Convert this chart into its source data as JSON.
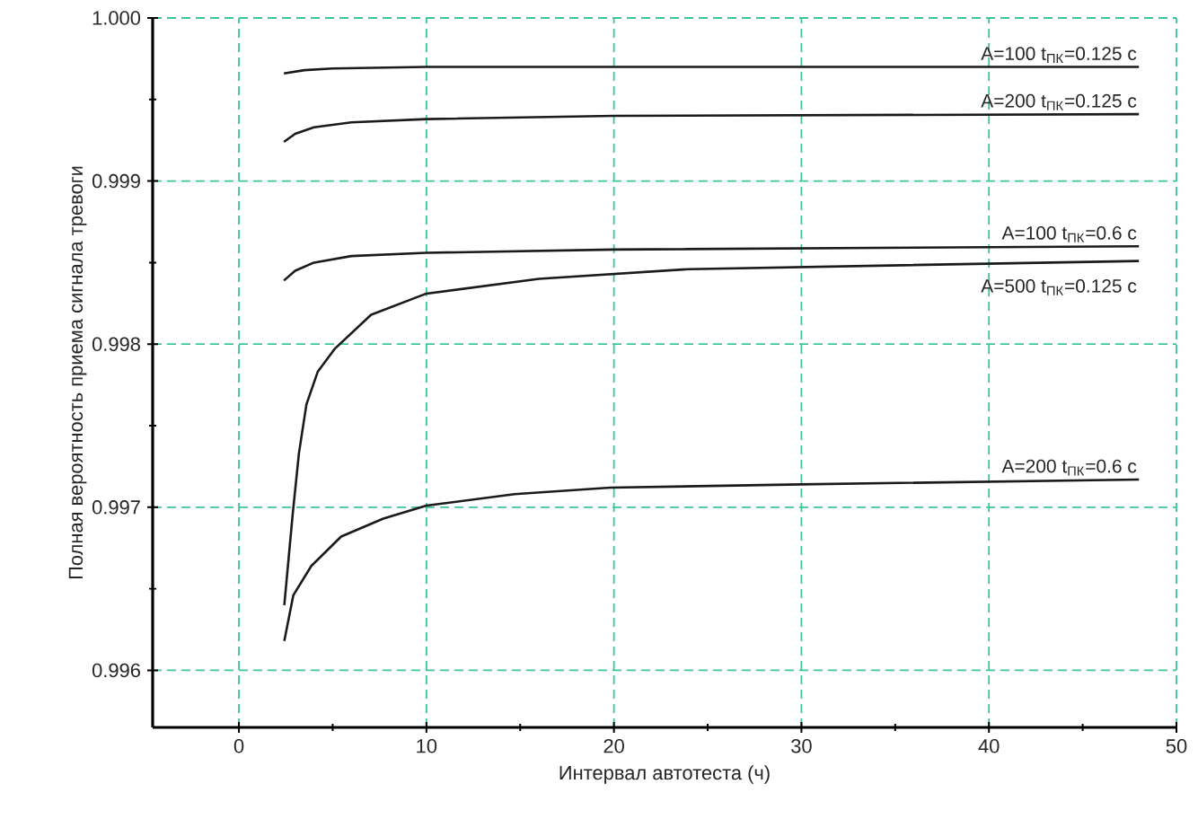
{
  "chart_data": {
    "type": "line",
    "xlabel": "Интервал автотеста (ч)",
    "ylabel": "Полная вероятность приема сигнала тревоги",
    "xlim": [
      -4.6,
      50
    ],
    "ylim": [
      0.99565,
      1.0
    ],
    "xticks": [
      0,
      10,
      20,
      30,
      40,
      50
    ],
    "yticks": [
      0.996,
      0.997,
      0.998,
      0.999,
      {
        "value": 1.0,
        "label": "1.000"
      }
    ],
    "grid": true,
    "legend": false,
    "line_style": "solid",
    "series": [
      {
        "name": "A=100 t$_{ПК}$=0.125 с",
        "color": "#1a1a1a",
        "x": [
          2.4,
          3.5,
          5,
          10,
          20,
          48
        ],
        "values": [
          0.99966,
          0.99968,
          0.99969,
          0.9997,
          0.9997,
          0.9997
        ]
      },
      {
        "name": "A=200 t$_{ПК}$=0.125 с",
        "color": "#1a1a1a",
        "x": [
          2.4,
          3,
          4,
          6,
          10,
          20,
          48
        ],
        "values": [
          0.99924,
          0.99929,
          0.99933,
          0.99936,
          0.99938,
          0.9994,
          0.99941
        ]
      },
      {
        "name": "A=100 t$_{ПК}$=0.6 с",
        "color": "#1a1a1a",
        "x": [
          2.4,
          3,
          4,
          6,
          10,
          20,
          48
        ],
        "values": [
          0.99839,
          0.99845,
          0.9985,
          0.99854,
          0.99856,
          0.99858,
          0.9986
        ]
      },
      {
        "name": "A=500 t$_{ПК}$=0.125 с",
        "color": "#1a1a1a",
        "x": [
          2.42,
          2.87,
          3.2,
          3.6,
          4.2,
          5.1,
          7.05,
          10,
          16,
          24,
          48
        ],
        "values": [
          0.9964,
          0.99696,
          0.99733,
          0.99763,
          0.99783,
          0.99797,
          0.99818,
          0.99831,
          0.9984,
          0.99846,
          0.99851
        ]
      },
      {
        "name": "A=200 t$_{ПК}$=0.6 с",
        "color": "#1a1a1a",
        "x": [
          2.42,
          2.9,
          3.86,
          5.45,
          7.7,
          10,
          14.7,
          19.8,
          30,
          48
        ],
        "values": [
          0.99618,
          0.99646,
          0.99664,
          0.99682,
          0.99693,
          0.99701,
          0.99708,
          0.99712,
          0.99714,
          0.99717
        ]
      }
    ]
  }
}
